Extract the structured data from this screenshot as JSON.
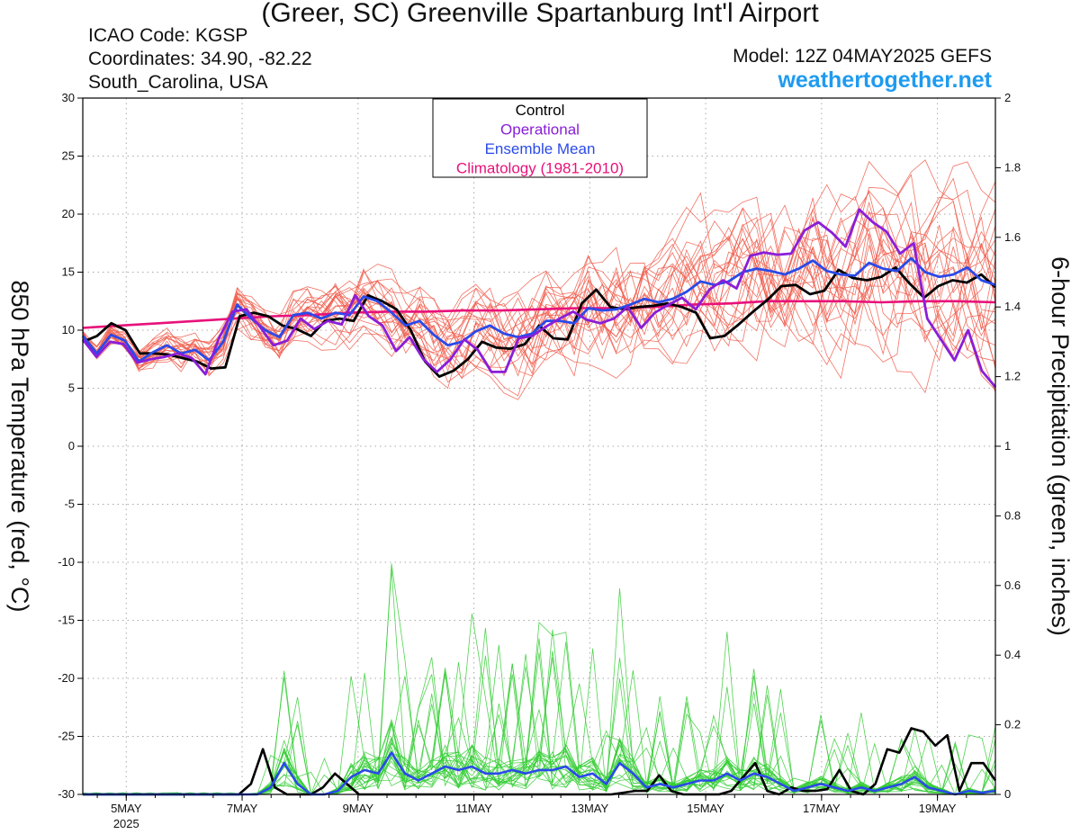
{
  "header": {
    "title": "(Greer, SC) Greenville Spartanburg Int'l Airport",
    "icao": "ICAO Code: KGSP",
    "coordinates": "Coordinates: 34.90, -82.22",
    "region": "South_Carolina, USA",
    "model": "Model: 12Z 04MAY2025 GEFS",
    "site": "weathertogether.net"
  },
  "chart_data": {
    "type": "line",
    "ylabel": "850 hPa Temperature (red, °C)",
    "y2label": "6-hour Precipitation (green, inches)",
    "ylim": [
      -30,
      30
    ],
    "y2lim": [
      0,
      2
    ],
    "yticks": [
      30,
      25,
      20,
      15,
      10,
      5,
      0,
      -5,
      -10,
      -15,
      -20,
      -25,
      -30
    ],
    "y2ticks": [
      "2",
      "1.8",
      "1.6",
      "1.4",
      "1.2",
      "1",
      "0.8",
      "0.6",
      "0.4",
      "0.2",
      "0"
    ],
    "xlim": [
      0,
      63
    ],
    "x_tick_positions": [
      3,
      11,
      19,
      27,
      35,
      43,
      51,
      59
    ],
    "x_tick_labels": [
      "5MAY",
      "7MAY",
      "9MAY",
      "11MAY",
      "13MAY",
      "15MAY",
      "17MAY",
      "19MAY"
    ],
    "x_year_label": "2025",
    "grid": true,
    "legend": {
      "position": "top-center",
      "entries": [
        {
          "label": "Control",
          "color": "#000000"
        },
        {
          "label": "Operational",
          "color": "#8a1ed8"
        },
        {
          "label": "Ensemble Mean",
          "color": "#2a4ae8"
        },
        {
          "label": "Climatology (1981-2010)",
          "color": "#e8117a"
        }
      ]
    },
    "colors": {
      "members_temp": "#f05a4a",
      "members_precip": "#33cc33"
    },
    "series": [
      {
        "name": "Control",
        "axis": "left",
        "color": "#000000",
        "values": [
          9,
          9.5,
          10.6,
          10,
          8,
          8,
          7.9,
          7.6,
          7.3,
          6.7,
          6.8,
          11.2,
          11.5,
          11.2,
          10.4,
          10.1,
          9.5,
          10.8,
          11,
          10.8,
          13,
          12.5,
          11.8,
          10,
          7.3,
          6,
          6.5,
          7.5,
          9,
          8.5,
          8.4,
          8.8,
          10.4,
          9.3,
          9.2,
          12.3,
          13.5,
          12,
          11.8,
          12,
          12.1,
          12.3,
          12,
          11.5,
          9.3,
          9.5,
          10.5,
          11.6,
          12.6,
          13.8,
          13.9,
          13.1,
          13.4,
          15.2,
          14.5,
          14.3,
          14.6,
          15.4,
          14,
          12.8,
          13.8,
          14.3,
          14.1,
          14.8,
          13.7
        ]
      },
      {
        "name": "Operational",
        "axis": "left",
        "color": "#8a1ed8",
        "values": [
          9.2,
          7.7,
          9,
          8.8,
          7.2,
          7.5,
          7.7,
          8,
          7.6,
          6.2,
          9.3,
          11.6,
          11.8,
          10.3,
          8.7,
          9.1,
          11,
          10.1,
          10.8,
          10.5,
          13,
          11.2,
          10.4,
          8.2,
          9.4,
          7.5,
          6.4,
          7.5,
          9.2,
          8.3,
          6.4,
          6.4,
          9.3,
          9.5,
          10.3,
          11,
          11.6,
          10.9,
          10.6,
          11,
          12,
          10.2,
          11.5,
          12.2,
          12.8,
          11.8,
          13.5,
          14.3,
          13.6,
          16.4,
          16.7,
          16.5,
          16.6,
          18.6,
          19.3,
          18.4,
          17.2,
          20.4,
          19.3,
          18.5,
          16.6,
          17.5,
          11,
          9.2,
          7.4,
          10,
          6.5,
          5.1
        ]
      },
      {
        "name": "Ensemble Mean",
        "axis": "left",
        "color": "#2a4ae8",
        "values": [
          9.5,
          8,
          9.6,
          9.1,
          7.3,
          8.1,
          8.7,
          8,
          8.3,
          7.4,
          9,
          12.2,
          11,
          10,
          9.4,
          11.3,
          11.5,
          11,
          11.5,
          11.3,
          12.9,
          12.5,
          11.5,
          10.4,
          10.8,
          9.6,
          8.7,
          9,
          9.9,
          10.4,
          9.7,
          9.4,
          9.7,
          10.8,
          10.8,
          10.6,
          11.9,
          11.7,
          11.8,
          12.2,
          12.7,
          12.4,
          12.7,
          13.3,
          14.2,
          13.9,
          14.2,
          15,
          15.3,
          15.1,
          14.8,
          15.3,
          16,
          15.1,
          14.8,
          14.7,
          15.8,
          15.3,
          15.1,
          16.2,
          15,
          14.6,
          14.8,
          15.4,
          14.3,
          13.9
        ]
      },
      {
        "name": "Climatology (1981-2010)",
        "axis": "left",
        "color": "#e8117a",
        "values": [
          10.2,
          10.4,
          10.6,
          10.8,
          11.0,
          11.2,
          11.3,
          11.5,
          11.6,
          11.6,
          11.7,
          11.7,
          11.8,
          11.9,
          11.9,
          12.0,
          12.2,
          12.3,
          12.5,
          12.5,
          12.5,
          12.4,
          12.5,
          12.5,
          12.4
        ]
      },
      {
        "name": "Control",
        "axis": "right",
        "values": [
          0,
          0,
          0,
          0,
          0,
          0,
          0,
          0,
          0,
          0,
          0,
          0,
          0,
          0,
          0.03,
          0.13,
          0.02,
          0,
          0,
          0,
          0.02,
          0.06,
          0.03,
          0,
          0,
          0,
          0,
          0,
          0,
          0,
          0,
          0,
          0,
          0,
          0,
          0,
          0,
          0,
          0,
          0,
          0,
          0,
          0,
          0,
          0,
          0.005,
          0.01,
          0.01,
          0.055,
          0.01,
          0,
          0,
          0,
          0,
          0.01,
          0.05,
          0.09,
          0.01,
          0,
          0.02,
          0.01,
          0.01,
          0.015,
          0.07,
          0.01,
          0,
          0.03,
          0.13,
          0.12,
          0.19,
          0.18,
          0.14,
          0.17,
          0.01,
          0.09,
          0.09,
          0.04
        ]
      },
      {
        "name": "Ensemble Mean",
        "axis": "right",
        "values": [
          0,
          0,
          0,
          0,
          0,
          0,
          0,
          0,
          0,
          0,
          0,
          0,
          0,
          0,
          0.02,
          0.09,
          0.03,
          0,
          0,
          0.01,
          0.05,
          0.07,
          0.06,
          0.12,
          0.06,
          0.04,
          0.06,
          0.08,
          0.07,
          0.08,
          0.06,
          0.06,
          0.07,
          0.06,
          0.07,
          0.07,
          0.08,
          0.05,
          0.06,
          0.03,
          0.09,
          0.06,
          0.02,
          0.03,
          0.02,
          0.03,
          0.04,
          0.04,
          0.06,
          0.04,
          0.06,
          0.05,
          0.03,
          0.01,
          0.02,
          0.03,
          0.02,
          0.01,
          0.02,
          0.01,
          0.02,
          0.03,
          0.05,
          0.02,
          0.01,
          0,
          0.01,
          0.005,
          0.01
        ]
      }
    ]
  }
}
